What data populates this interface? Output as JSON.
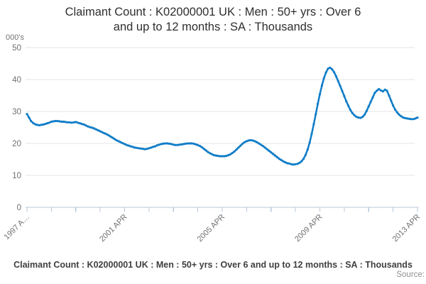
{
  "title": {
    "line1": "Claimant Count : K02000001 UK : Men : 50+ yrs : Over 6",
    "line2": "and up to 12 months : SA : Thousands"
  },
  "y_axis": {
    "unit_label": "000's",
    "tick_values": [
      0,
      10,
      20,
      30,
      40,
      50
    ]
  },
  "x_axis": {
    "year_tick_count": 17,
    "labels": [
      {
        "tick": 0,
        "text": "1997 A…"
      },
      {
        "tick": 4,
        "text": "2001 APR"
      },
      {
        "tick": 8,
        "text": "2005 APR"
      },
      {
        "tick": 12,
        "text": "2009 APR"
      },
      {
        "tick": 16,
        "text": "2013 APR"
      }
    ]
  },
  "footer": {
    "legend": "Claimant Count : K02000001 UK : Men : 50+ yrs : Over 6 and up to 12 months : SA : Thousands",
    "source_label": "Source:"
  },
  "colors": {
    "line": "#107DC8",
    "grid": "#e5e5e5",
    "axis": "#b9c8da",
    "tick_text": "#707070",
    "title_text": "#2f2f2f",
    "legend_text": "#3f3f3f",
    "source_text": "#8f8f8f"
  },
  "chart_data": {
    "type": "line",
    "title": "Claimant Count : K02000001 UK : Men : 50+ yrs : Over 6 and up to 12 months : SA : Thousands",
    "ylabel": "000's",
    "ylim": [
      0,
      50
    ],
    "grid": "horizontal",
    "legend_position": "bottom",
    "frequency": "monthly",
    "x_start": "1997-04",
    "x_end": "2013-04",
    "x_tick_labels": [
      "1997 APR",
      "2001 APR",
      "2005 APR",
      "2009 APR",
      "2013 APR"
    ],
    "series": [
      {
        "name": "Claimant Count : K02000001 UK : Men : 50+ yrs : Over 6 and up to 12 months : SA : Thousands",
        "color": "#107DC8",
        "values": [
          29.2,
          28.1,
          27.0,
          26.4,
          26.0,
          25.8,
          25.7,
          25.8,
          25.9,
          26.1,
          26.3,
          26.5,
          26.8,
          26.9,
          27.0,
          27.0,
          26.9,
          26.8,
          26.8,
          26.7,
          26.6,
          26.6,
          26.5,
          26.6,
          26.7,
          26.5,
          26.3,
          26.1,
          25.9,
          25.6,
          25.3,
          25.1,
          24.9,
          24.7,
          24.4,
          24.1,
          23.8,
          23.5,
          23.2,
          22.9,
          22.6,
          22.2,
          21.8,
          21.4,
          21.0,
          20.7,
          20.4,
          20.1,
          19.8,
          19.5,
          19.3,
          19.1,
          18.9,
          18.7,
          18.6,
          18.5,
          18.4,
          18.3,
          18.2,
          18.3,
          18.5,
          18.7,
          18.9,
          19.1,
          19.4,
          19.6,
          19.8,
          19.9,
          20.0,
          20.0,
          19.9,
          19.8,
          19.6,
          19.5,
          19.5,
          19.6,
          19.7,
          19.8,
          19.9,
          20.0,
          20.0,
          20.0,
          19.9,
          19.7,
          19.5,
          19.2,
          18.8,
          18.3,
          17.8,
          17.3,
          16.9,
          16.6,
          16.3,
          16.2,
          16.1,
          16.0,
          16.0,
          16.0,
          16.1,
          16.3,
          16.6,
          17.0,
          17.5,
          18.1,
          18.7,
          19.3,
          19.9,
          20.4,
          20.7,
          20.9,
          21.0,
          20.9,
          20.7,
          20.4,
          20.0,
          19.6,
          19.2,
          18.7,
          18.2,
          17.7,
          17.2,
          16.7,
          16.2,
          15.7,
          15.2,
          14.8,
          14.4,
          14.1,
          13.8,
          13.7,
          13.5,
          13.4,
          13.5,
          13.6,
          13.9,
          14.4,
          15.2,
          16.4,
          18.1,
          20.3,
          23.0,
          26.0,
          29.2,
          32.4,
          35.4,
          38.1,
          40.4,
          42.2,
          43.4,
          43.7,
          43.2,
          42.3,
          41.0,
          39.5,
          38.0,
          36.4,
          34.8,
          33.2,
          31.8,
          30.5,
          29.5,
          28.8,
          28.3,
          28.1,
          28.0,
          28.3,
          29.0,
          30.2,
          31.6,
          33.0,
          34.4,
          35.8,
          36.5,
          37.0,
          36.6,
          36.3,
          36.8,
          36.5,
          35.0,
          33.4,
          31.9,
          30.6,
          29.7,
          29.0,
          28.5,
          28.1,
          27.9,
          27.8,
          27.7,
          27.6,
          27.6,
          27.8,
          28.1
        ]
      }
    ]
  }
}
